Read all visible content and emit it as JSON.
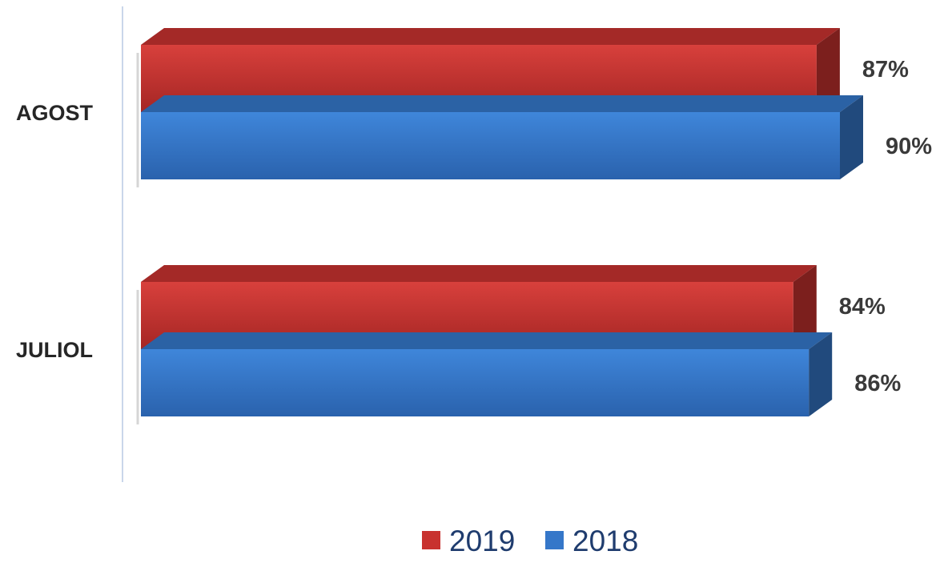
{
  "chart_data": {
    "type": "bar",
    "orientation": "horizontal",
    "style": "3d",
    "categories": [
      "AGOST",
      "JULIOL"
    ],
    "series": [
      {
        "name": "2019",
        "values": [
          87,
          84
        ],
        "labels": [
          "87%",
          "84%"
        ],
        "color": "#c8322f"
      },
      {
        "name": "2018",
        "values": [
          90,
          86
        ],
        "labels": [
          "90%",
          "86%"
        ],
        "color": "#3577c9"
      }
    ],
    "unit": "%",
    "title": "",
    "xlabel": "",
    "ylabel": "",
    "xlim": [
      0,
      100
    ],
    "grid": false,
    "legend": "bottom"
  },
  "colors": {
    "red": "#c8322f",
    "blue": "#3577c9",
    "axis": "#c9d6ea",
    "legend_text": "#1f3c6e"
  }
}
